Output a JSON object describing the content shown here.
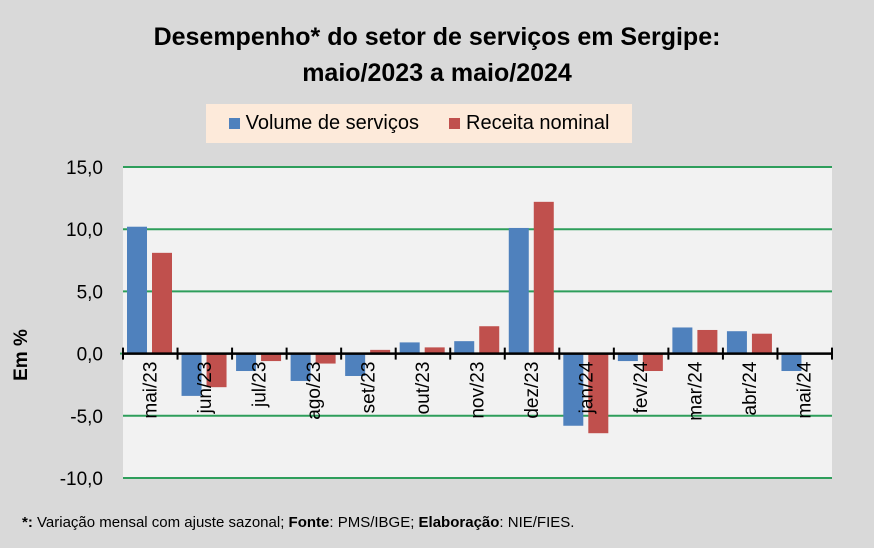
{
  "chart_data": {
    "type": "bar",
    "title": "Desempenho* do setor de serviços em Sergipe:",
    "subtitle": "maio/2023 a maio/2024",
    "xlabel": "",
    "ylabel": "Em %",
    "ylim": [
      -10,
      15
    ],
    "yticks": [
      15,
      10,
      5,
      0,
      -5,
      -10
    ],
    "ytick_labels": [
      "15,0",
      "10,0",
      "5,0",
      "0,0",
      "-5,0",
      "-10,0"
    ],
    "grid": true,
    "legend_position": "top",
    "categories": [
      "mai/23",
      "jun/23",
      "jul/23",
      "ago/23",
      "set/23",
      "out/23",
      "nov/23",
      "dez/23",
      "jan/24",
      "fev/24",
      "mar/24",
      "abr/24",
      "mai/24"
    ],
    "series": [
      {
        "name": "Volume de serviços",
        "color": "#4F81BD",
        "values": [
          10.2,
          -3.4,
          -1.4,
          -2.2,
          -1.8,
          0.9,
          1.0,
          10.1,
          -5.8,
          -0.6,
          2.1,
          1.8,
          -1.4
        ]
      },
      {
        "name": "Receita nominal",
        "color": "#C0504D",
        "values": [
          8.1,
          -2.7,
          -0.6,
          -0.8,
          0.3,
          0.5,
          2.2,
          12.2,
          -6.4,
          -1.4,
          1.9,
          1.6,
          0.0
        ]
      }
    ]
  },
  "colors": {
    "background": "#D9D9D9",
    "plot_background": "#F2F2F2",
    "gridline": "#2E9E5B",
    "axis": "#000000",
    "legend_background": "#FDEADA"
  },
  "footnote": {
    "marker": "*:",
    "text1": " Variação mensal com ajuste sazonal; ",
    "fonte_label": "Fonte",
    "fonte_text": ": PMS/IBGE; ",
    "elaboracao_label": "Elaboração",
    "elaboracao_text": ":  NIE/FIES."
  }
}
